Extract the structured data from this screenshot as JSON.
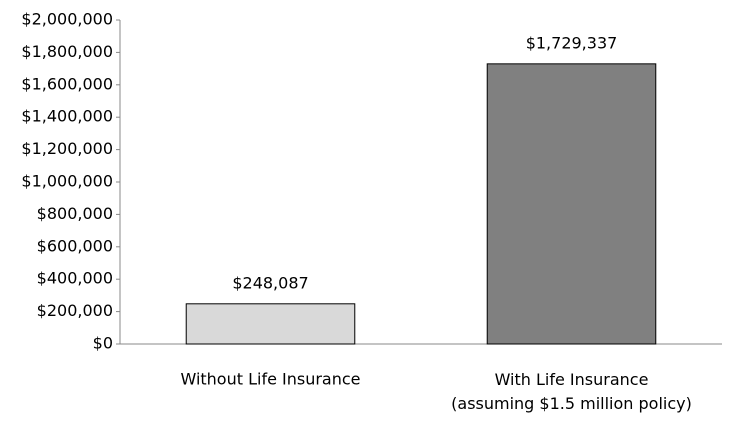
{
  "chart_data": {
    "type": "bar",
    "categories": [
      "Without Life Insurance",
      "With Life Insurance\n(assuming $1.5 million policy)"
    ],
    "values": [
      248087,
      1729337
    ],
    "value_labels": [
      "$248,087",
      "$1,729,337"
    ],
    "colors": [
      "#d9d9d9",
      "#808080"
    ],
    "ylim": [
      0,
      2000000
    ],
    "yticks": [
      {
        "value": 0,
        "label": "$0"
      },
      {
        "value": 200000,
        "label": "$200,000"
      },
      {
        "value": 400000,
        "label": "$400,000"
      },
      {
        "value": 600000,
        "label": "$600,000"
      },
      {
        "value": 800000,
        "label": "$800,000"
      },
      {
        "value": 1000000,
        "label": "$1,000,000"
      },
      {
        "value": 1200000,
        "label": "$1,200,000"
      },
      {
        "value": 1400000,
        "label": "$1,400,000"
      },
      {
        "value": 1600000,
        "label": "$1,600,000"
      },
      {
        "value": 1800000,
        "label": "$1,800,000"
      },
      {
        "value": 2000000,
        "label": "$2,000,000"
      }
    ],
    "grid": false
  }
}
